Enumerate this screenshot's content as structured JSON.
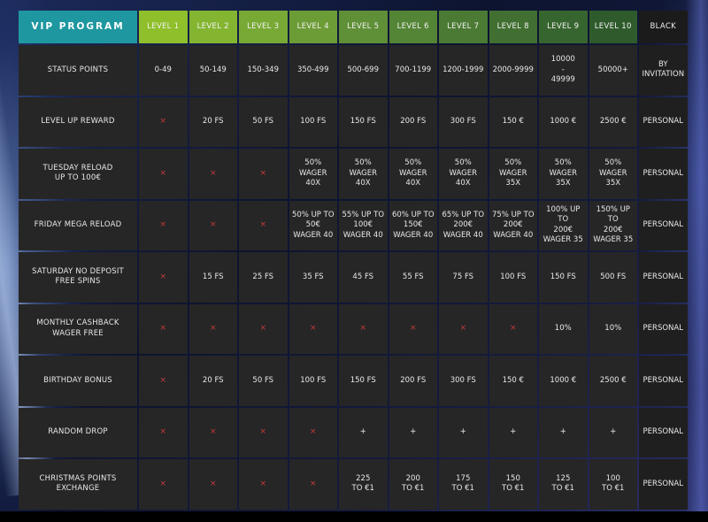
{
  "header": {
    "title": "VIP PROGRAM",
    "levels": [
      {
        "label": "LEVEL 1",
        "color": "#8fbf2a"
      },
      {
        "label": "LEVEL 2",
        "color": "#84b531"
      },
      {
        "label": "LEVEL 3",
        "color": "#78a935"
      },
      {
        "label": "LEVEL 4",
        "color": "#6c9c36"
      },
      {
        "label": "LEVEL 5",
        "color": "#5f8f36"
      },
      {
        "label": "LEVEL 6",
        "color": "#548435"
      },
      {
        "label": "LEVEL 7",
        "color": "#4a7a33"
      },
      {
        "label": "LEVEL 8",
        "color": "#406f31"
      },
      {
        "label": "LEVEL 9",
        "color": "#37652f"
      },
      {
        "label": "LEVEL 10",
        "color": "#2f5b2c"
      },
      {
        "label": "BLACK",
        "color": "#1b1b1b"
      }
    ]
  },
  "rows": [
    {
      "label": "STATUS POINTS",
      "cells": [
        "0-49",
        "50-149",
        "150-349",
        "350-499",
        "500-699",
        "700-1199",
        "1200-1999",
        "2000-9999",
        "10000\n-\n49999",
        "50000+",
        "BY\nINVITATION"
      ]
    },
    {
      "label": "LEVEL UP REWARD",
      "cells": [
        "×",
        "20 FS",
        "50 FS",
        "100 FS",
        "150 FS",
        "200 FS",
        "300 FS",
        "150 €",
        "1000 €",
        "2500 €",
        "PERSONAL"
      ]
    },
    {
      "label": "TUESDAY RELOAD\nUP TO 100€",
      "cells": [
        "×",
        "×",
        "×",
        "50%\nWAGER\n40X",
        "50%\nWAGER\n40X",
        "50%\nWAGER\n40X",
        "50%\nWAGER\n40X",
        "50%\nWAGER\n35X",
        "50%\nWAGER\n35X",
        "50%\nWAGER\n35X",
        "PERSONAL"
      ]
    },
    {
      "label": "FRIDAY MEGA RELOAD",
      "cells": [
        "×",
        "×",
        "×",
        "50% UP TO\n50€\nWAGER 40",
        "55% UP TO\n100€\nWAGER 40",
        "60% UP TO\n150€\nWAGER 40",
        "65% UP TO\n200€\nWAGER 40",
        "75% UP TO\n200€\nWAGER 40",
        "100% UP TO\n200€\nWAGER 35",
        "150% UP TO\n200€\nWAGER 35",
        "PERSONAL"
      ]
    },
    {
      "label": "SATURDAY NO DEPOSIT\nFREE SPINS",
      "cells": [
        "×",
        "15 FS",
        "25 FS",
        "35 FS",
        "45 FS",
        "55 FS",
        "75 FS",
        "100 FS",
        "150 FS",
        "500 FS",
        "PERSONAL"
      ]
    },
    {
      "label": "MONTHLY CASHBACK\nWAGER FREE",
      "cells": [
        "×",
        "×",
        "×",
        "×",
        "×",
        "×",
        "×",
        "×",
        "10%",
        "10%",
        "PERSONAL"
      ]
    },
    {
      "label": "BIRTHDAY BONUS",
      "cells": [
        "×",
        "20 FS",
        "50 FS",
        "100 FS",
        "150 FS",
        "200 FS",
        "300 FS",
        "150 €",
        "1000 €",
        "2500 €",
        "PERSONAL"
      ]
    },
    {
      "label": "RANDOM DROP",
      "cells": [
        "×",
        "×",
        "×",
        "×",
        "+",
        "+",
        "+",
        "+",
        "+",
        "+",
        "PERSONAL"
      ]
    },
    {
      "label": "CHRISTMAS POINTS\nEXCHANGE",
      "cells": [
        "×",
        "×",
        "×",
        "×",
        "225\nTO €1",
        "200\nTO €1",
        "175\nTO €1",
        "150\nTO €1",
        "125\nTO €1",
        "100\nTO €1",
        "PERSONAL"
      ]
    }
  ]
}
